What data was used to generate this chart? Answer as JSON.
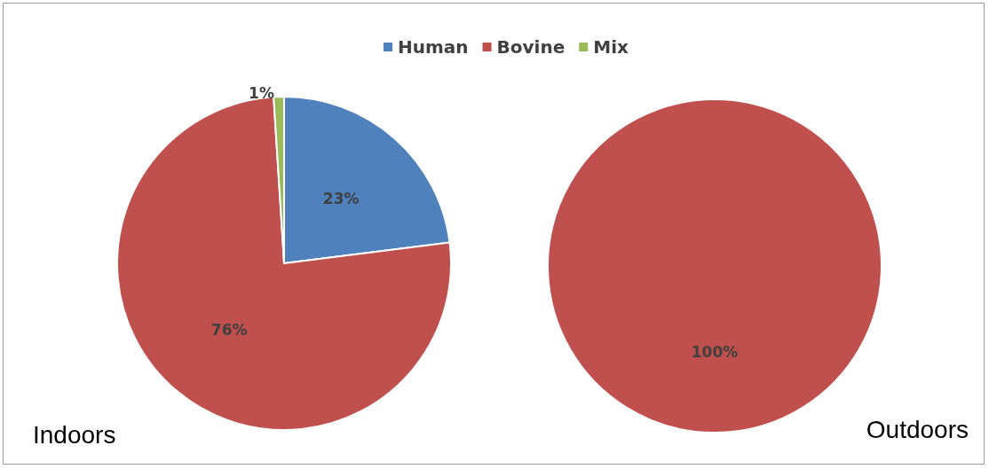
{
  "chart_data": [
    {
      "type": "pie",
      "title": "Indoors",
      "categories": [
        "Human",
        "Bovine",
        "Mix"
      ],
      "values": [
        23,
        76,
        1
      ],
      "colors": [
        "#4f81bd",
        "#c0504d",
        "#9bbb59"
      ],
      "value_labels": [
        "23%",
        "76%",
        "1%"
      ],
      "legend": "top"
    },
    {
      "type": "pie",
      "title": "Outdoors",
      "categories": [
        null
      ],
      "values": [
        100
      ],
      "colors": [
        "#c0504d"
      ],
      "value_labels": [
        "100%"
      ]
    }
  ]
}
